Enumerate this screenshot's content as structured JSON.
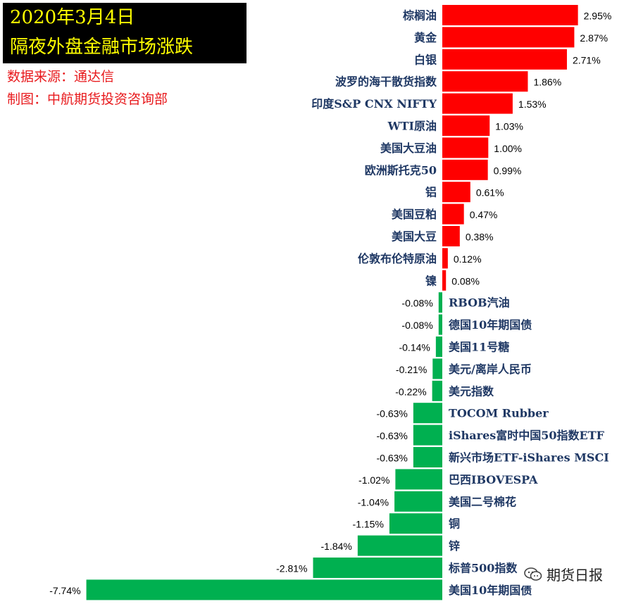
{
  "header": {
    "date": "2020年3月4日",
    "title": "隔夜外盘金融市场涨跌",
    "source": "数据来源：通达信",
    "maker": "制图：中航期货投资咨询部"
  },
  "watermark": {
    "text": "期货日报",
    "icon": "wechat-icon"
  },
  "colors": {
    "positive": "#ff0000",
    "negative": "#00b050",
    "label": "#1f3864",
    "title_bg": "#000000",
    "title_text": "#ffff00",
    "note": "#e8191c"
  },
  "chart_data": {
    "type": "bar",
    "orientation": "horizontal",
    "categories": [
      "棕榈油",
      "黄金",
      "白银",
      "波罗的海干散货指数",
      "印度S&P CNX NIFTY",
      "WTI原油",
      "美国大豆油",
      "欧洲斯托克50",
      "铝",
      "美国豆粕",
      "美国大豆",
      "伦敦布伦特原油",
      "镍",
      "RBOB汽油",
      "德国10年期国债",
      "美国11号糖",
      "美元/离岸人民币",
      "美元指数",
      "TOCOM Rubber",
      "iShares富时中国50指数ETF",
      "新兴市场ETF-iShares MSCI",
      "巴西IBOVESPA",
      "美国二号棉花",
      "铜",
      "锌",
      "标普500指数",
      "美国10年期国债"
    ],
    "values": [
      2.95,
      2.87,
      2.71,
      1.86,
      1.53,
      1.03,
      1.0,
      0.99,
      0.61,
      0.47,
      0.38,
      0.12,
      0.08,
      -0.08,
      -0.08,
      -0.14,
      -0.21,
      -0.22,
      -0.63,
      -0.63,
      -0.63,
      -1.02,
      -1.04,
      -1.15,
      -1.84,
      -2.81,
      -7.74
    ],
    "value_labels": [
      "2.95%",
      "2.87%",
      "2.71%",
      "1.86%",
      "1.53%",
      "1.03%",
      "1.00%",
      "0.99%",
      "0.61%",
      "0.47%",
      "0.38%",
      "0.12%",
      "0.08%",
      "-0.08%",
      "-0.08%",
      "-0.14%",
      "-0.21%",
      "-0.22%",
      "-0.63%",
      "-0.63%",
      "-0.63%",
      "-1.02%",
      "-1.04%",
      "-1.15%",
      "-1.84%",
      "-2.81%",
      "-7.74%"
    ],
    "unit": "%",
    "grid": false,
    "legend": "none"
  }
}
